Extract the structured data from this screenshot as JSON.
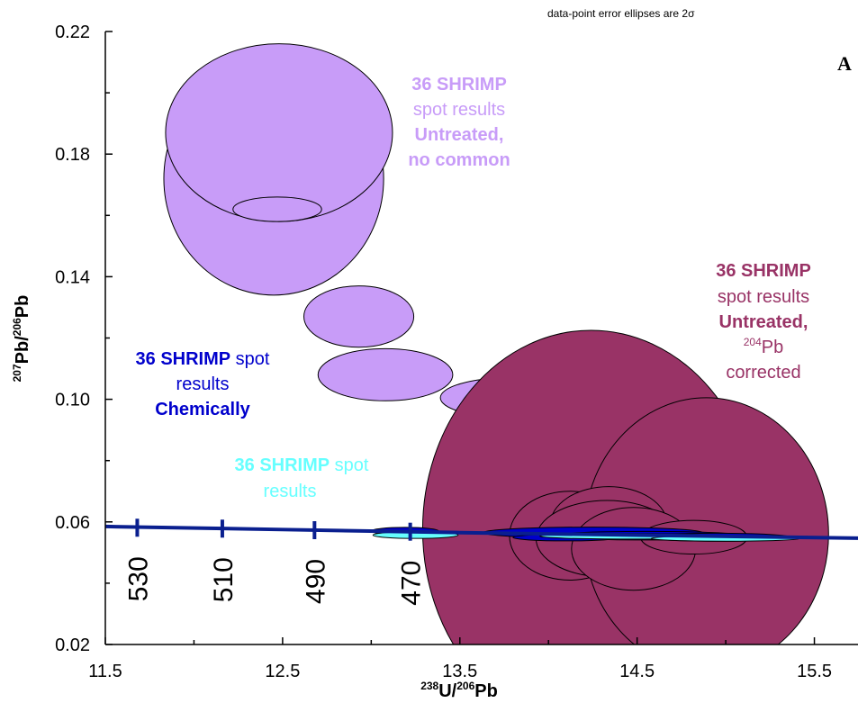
{
  "chart_data": {
    "type": "scatter",
    "xlabel_sup": "238",
    "xlabel_main": "U/",
    "xlabel_sup2": "206",
    "xlabel_end": "Pb",
    "ylabel_sup": "207",
    "ylabel_main": "Pb/",
    "ylabel_sup2": "206",
    "ylabel_end": "Pb",
    "xlim": [
      11.5,
      16.0
    ],
    "ylim": [
      0.02,
      0.22
    ],
    "x_ticks": [
      "11.5",
      "12.5",
      "13.5",
      "14.5",
      "15.5"
    ],
    "x_tick_values": [
      11.5,
      12.5,
      13.5,
      14.5,
      15.5
    ],
    "y_ticks": [
      "0.02",
      "0.06",
      "0.10",
      "0.14",
      "0.18",
      "0.22"
    ],
    "y_tick_values": [
      0.02,
      0.06,
      0.1,
      0.14,
      0.18,
      0.22
    ],
    "note": "data-point error ellipses are 2σ",
    "panel_label": "A",
    "concordia": {
      "color": "#0a1f8f",
      "points": [
        [
          11.5,
          0.0585
        ],
        [
          12.5,
          0.0575
        ],
        [
          13.5,
          0.0565
        ],
        [
          14.5,
          0.0557
        ],
        [
          16.0,
          0.0545
        ]
      ],
      "age_ticks": [
        {
          "x": 11.68,
          "y": 0.0581,
          "label": "530"
        },
        {
          "x": 12.16,
          "y": 0.0578,
          "label": "510"
        },
        {
          "x": 12.68,
          "y": 0.0573,
          "label": "490"
        },
        {
          "x": 13.22,
          "y": 0.0568,
          "label": "470"
        }
      ]
    },
    "series": [
      {
        "key": "untreated_no_common",
        "color": "#c89cf8",
        "stroke": "#000000",
        "ellipses": [
          {
            "x": 12.45,
            "y": 0.172,
            "sx": 0.62,
            "sy": 0.038
          },
          {
            "x": 12.48,
            "y": 0.187,
            "sx": 0.64,
            "sy": 0.029
          },
          {
            "x": 12.47,
            "y": 0.162,
            "sx": 0.25,
            "sy": 0.004
          },
          {
            "x": 12.93,
            "y": 0.127,
            "sx": 0.31,
            "sy": 0.01
          },
          {
            "x": 13.08,
            "y": 0.108,
            "sx": 0.38,
            "sy": 0.0085
          },
          {
            "x": 13.78,
            "y": 0.1005,
            "sx": 0.39,
            "sy": 0.0065
          },
          {
            "x": 13.89,
            "y": 0.078,
            "sx": 0.21,
            "sy": 0.0028
          }
        ]
      },
      {
        "key": "untreated_204_corrected",
        "color": "#993366",
        "stroke": "#000000",
        "ellipses": [
          {
            "x": 14.24,
            "y": 0.0575,
            "sx": 0.95,
            "sy": 0.065
          },
          {
            "x": 14.89,
            "y": 0.056,
            "sx": 0.69,
            "sy": 0.0445
          },
          {
            "x": 14.12,
            "y": 0.0555,
            "sx": 0.34,
            "sy": 0.0145
          },
          {
            "x": 14.34,
            "y": 0.059,
            "sx": 0.33,
            "sy": 0.0125
          },
          {
            "x": 14.38,
            "y": 0.058,
            "sx": 0.24,
            "sy": 0.008
          },
          {
            "x": 14.33,
            "y": 0.0545,
            "sx": 0.4,
            "sy": 0.0125
          },
          {
            "x": 14.48,
            "y": 0.0512,
            "sx": 0.35,
            "sy": 0.0135
          },
          {
            "x": 14.82,
            "y": 0.055,
            "sx": 0.3,
            "sy": 0.0055
          }
        ]
      },
      {
        "key": "chemically_abraded",
        "color": "#0000cc",
        "stroke": "#000000",
        "ellipses": [
          {
            "x": 13.19,
            "y": 0.057,
            "sx": 0.19,
            "sy": 0.0012
          },
          {
            "x": 14.25,
            "y": 0.0565,
            "sx": 0.62,
            "sy": 0.0018
          },
          {
            "x": 14.55,
            "y": 0.0555,
            "sx": 0.55,
            "sy": 0.0014
          },
          {
            "x": 14.95,
            "y": 0.055,
            "sx": 0.42,
            "sy": 0.0013
          },
          {
            "x": 14.1,
            "y": 0.0549,
            "sx": 0.3,
            "sy": 0.0011
          }
        ]
      },
      {
        "key": "annealed",
        "color": "#66ffff",
        "stroke": "#000000",
        "ellipses": [
          {
            "x": 13.25,
            "y": 0.0557,
            "sx": 0.24,
            "sy": 0.0011
          },
          {
            "x": 14.45,
            "y": 0.0553,
            "sx": 0.5,
            "sy": 0.0009
          },
          {
            "x": 15.0,
            "y": 0.0546,
            "sx": 0.42,
            "sy": 0.0009
          }
        ]
      }
    ],
    "annotations": {
      "untreated_no_common": {
        "color": "#c89cf8",
        "lines": [
          {
            "text": "36 SHRIMP",
            "bold": true
          },
          {
            "text": "spot results",
            "bold": false
          },
          {
            "text": "Untreated,",
            "bold": true
          },
          {
            "text": "no common",
            "bold": true
          }
        ]
      },
      "untreated_204_corrected": {
        "color": "#993366",
        "line1": "36 SHRIMP",
        "line2": "spot results",
        "line3": "Untreated,",
        "line4_sup": "204",
        "line4": "Pb",
        "line5": "corrected"
      },
      "chemically_abraded": {
        "color": "#0000cc",
        "line1_bold": "36 SHRIMP",
        "line1_rest": " spot",
        "line2": "results",
        "line3": "Chemically"
      },
      "annealed": {
        "color": "#66ffff",
        "line1_bold": "36 SHRIMP",
        "line1_rest": " spot",
        "line2": "results"
      }
    }
  }
}
